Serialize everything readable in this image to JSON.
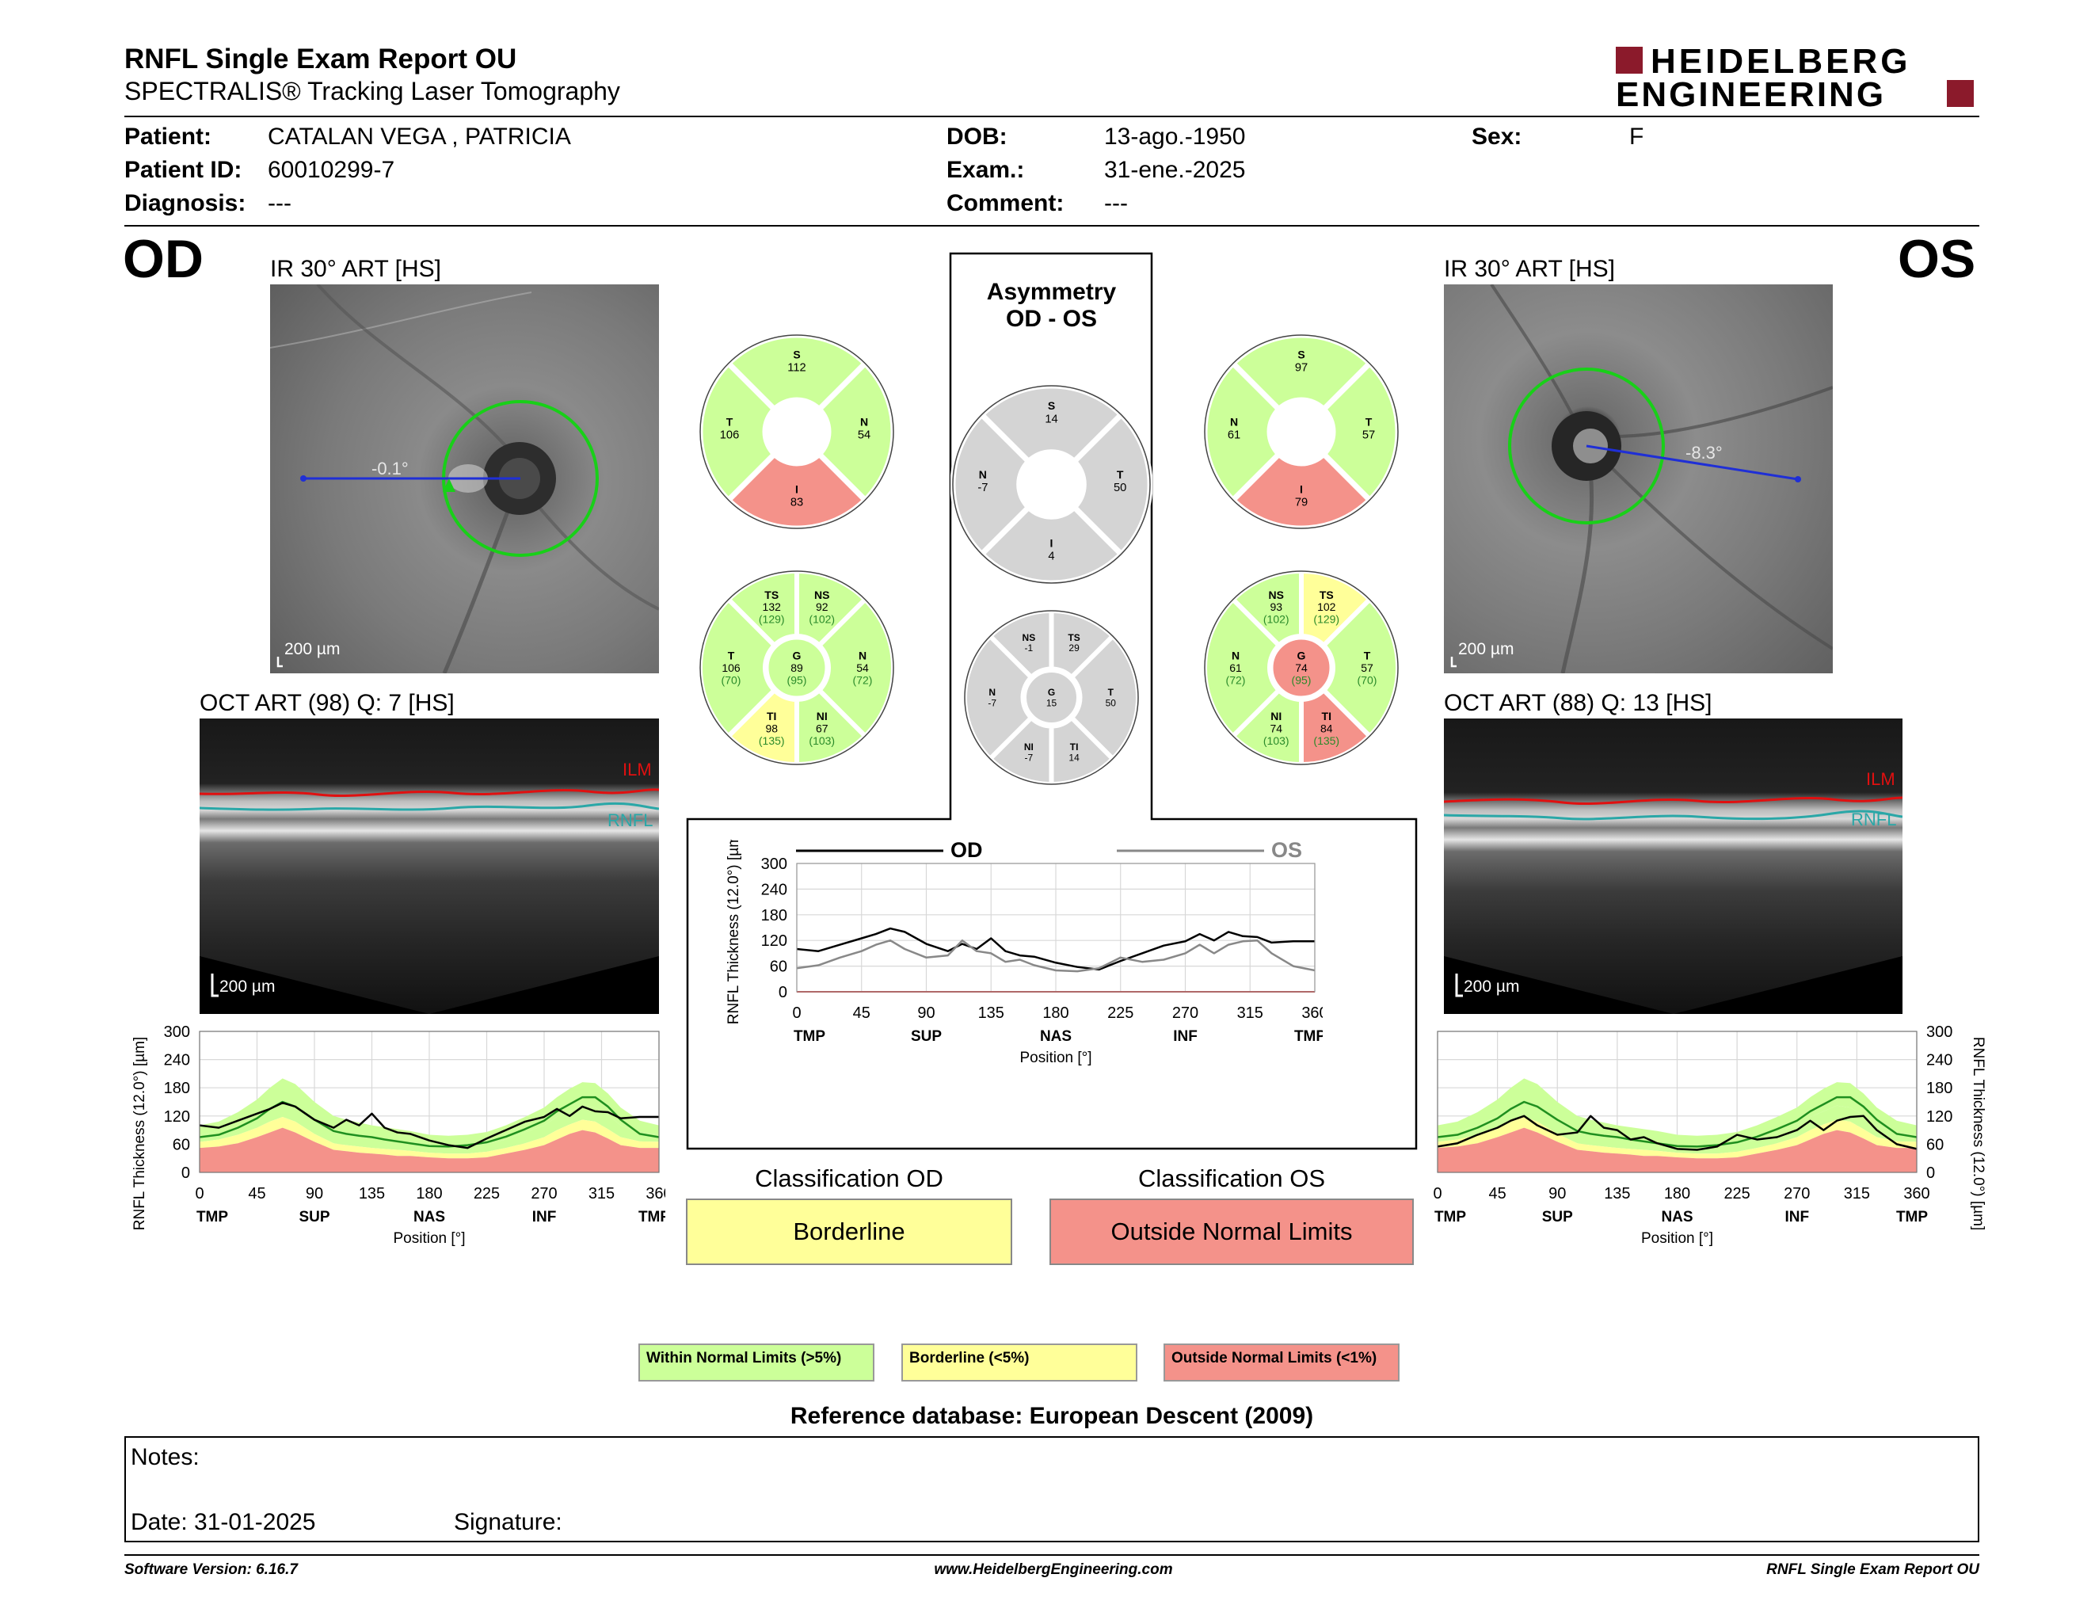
{
  "header": {
    "title": "RNFL Single Exam Report OU",
    "subtitle": "SPECTRALIS® Tracking Laser Tomography",
    "logo_line1": "HEIDELBERG",
    "logo_line2": "ENGINEERING"
  },
  "patient": {
    "patient_label": "Patient:",
    "patient_value": "CATALAN VEGA , PATRICIA",
    "id_label": "Patient ID:",
    "id_value": "60010299-7",
    "diagnosis_label": "Diagnosis:",
    "diagnosis_value": "---",
    "dob_label": "DOB:",
    "dob_value": "13-ago.-1950",
    "exam_label": "Exam.:",
    "exam_value": "31-ene.-2025",
    "comment_label": "Comment:",
    "comment_value": "---",
    "sex_label": "Sex:",
    "sex_value": "F"
  },
  "od": {
    "eye": "OD",
    "ir_label": "IR 30° ART [HS]",
    "ir_angle": "-0.1°",
    "ir_scale": "200 µm",
    "oct_label": "OCT ART (98) Q: 7 [HS]",
    "oct_scale": "200 µm",
    "ilm": "ILM",
    "rnfl": "RNFL",
    "classification_title": "Classification OD",
    "classification": "Borderline"
  },
  "os": {
    "eye": "OS",
    "ir_label": "IR 30° ART [HS]",
    "ir_angle": "-8.3°",
    "ir_scale": "200 µm",
    "oct_label": "OCT ART (88) Q: 13 [HS]",
    "oct_scale": "200 µm",
    "ilm": "ILM",
    "rnfl": "RNFL",
    "classification_title": "Classification OS",
    "classification": "Outside Normal Limits"
  },
  "asymmetry": {
    "title_line1": "Asymmetry",
    "title_line2": "OD - OS"
  },
  "colors": {
    "within": "#ccff99",
    "borderline": "#ffff99",
    "outside": "#f4928a",
    "neutral": "#d4d4d4",
    "od_line": "#000000",
    "os_line": "#888888"
  },
  "sector_charts": {
    "od_quadrants": [
      {
        "label": "S",
        "value": "112",
        "status": "within"
      },
      {
        "label": "N",
        "value": "54",
        "status": "within"
      },
      {
        "label": "I",
        "value": "83",
        "status": "outside"
      },
      {
        "label": "T",
        "value": "106",
        "status": "within"
      }
    ],
    "os_quadrants": [
      {
        "label": "S",
        "value": "97",
        "status": "within"
      },
      {
        "label": "T",
        "value": "57",
        "status": "within"
      },
      {
        "label": "I",
        "value": "79",
        "status": "outside"
      },
      {
        "label": "N",
        "value": "61",
        "status": "within"
      }
    ],
    "asym_quadrants": [
      {
        "label": "S",
        "value": "14"
      },
      {
        "label": "T",
        "value": "50"
      },
      {
        "label": "I",
        "value": "4"
      },
      {
        "label": "N",
        "value": "-7"
      }
    ],
    "od_sectors": [
      {
        "label": "TS",
        "value": "132",
        "ref": "(129)",
        "status": "within"
      },
      {
        "label": "NS",
        "value": "92",
        "ref": "(102)",
        "status": "within"
      },
      {
        "label": "N",
        "value": "54",
        "ref": "(72)",
        "status": "within"
      },
      {
        "label": "NI",
        "value": "67",
        "ref": "(103)",
        "status": "within"
      },
      {
        "label": "TI",
        "value": "98",
        "ref": "(135)",
        "status": "borderline"
      },
      {
        "label": "T",
        "value": "106",
        "ref": "(70)",
        "status": "within"
      },
      {
        "label": "G",
        "value": "89",
        "ref": "(95)",
        "status": "within"
      }
    ],
    "os_sectors": [
      {
        "label": "NS",
        "value": "93",
        "ref": "(102)",
        "status": "within"
      },
      {
        "label": "TS",
        "value": "102",
        "ref": "(129)",
        "status": "borderline"
      },
      {
        "label": "T",
        "value": "57",
        "ref": "(70)",
        "status": "within"
      },
      {
        "label": "TI",
        "value": "84",
        "ref": "(135)",
        "status": "outside"
      },
      {
        "label": "NI",
        "value": "74",
        "ref": "(103)",
        "status": "within"
      },
      {
        "label": "N",
        "value": "61",
        "ref": "(72)",
        "status": "within"
      },
      {
        "label": "G",
        "value": "74",
        "ref": "(95)",
        "status": "outside"
      }
    ],
    "asym_sectors": [
      {
        "label": "NS",
        "value": "-1"
      },
      {
        "label": "TS",
        "value": "29"
      },
      {
        "label": "T",
        "value": "50"
      },
      {
        "label": "TI",
        "value": "14"
      },
      {
        "label": "NI",
        "value": "-7"
      },
      {
        "label": "N",
        "value": "-7"
      },
      {
        "label": "G",
        "value": "15"
      }
    ]
  },
  "chart_data": [
    {
      "type": "area",
      "id": "od_profile",
      "ylabel": "RNFL Thickness (12.0°) [µm]",
      "xlabel": "Position [°]",
      "ylim": [
        0,
        300
      ],
      "xlim": [
        0,
        360
      ],
      "y_ticks": [
        0,
        60,
        120,
        180,
        240,
        300
      ],
      "x_ticks": [
        0,
        45,
        90,
        135,
        180,
        225,
        270,
        315,
        360
      ],
      "x_region_labels": [
        "TMP",
        "SUP",
        "NAS",
        "INF",
        "TMP"
      ],
      "x": [
        0,
        15,
        30,
        45,
        55,
        65,
        75,
        90,
        105,
        115,
        125,
        135,
        145,
        155,
        165,
        180,
        195,
        210,
        225,
        240,
        255,
        270,
        280,
        290,
        300,
        310,
        320,
        330,
        345,
        360
      ],
      "series": [
        {
          "name": "OD",
          "values": [
            100,
            95,
            110,
            125,
            135,
            148,
            140,
            112,
            95,
            112,
            100,
            125,
            95,
            85,
            82,
            68,
            58,
            52,
            72,
            90,
            108,
            118,
            135,
            120,
            140,
            130,
            128,
            115,
            118,
            118
          ]
        }
      ],
      "bands": {
        "outside_upper": [
          52,
          55,
          62,
          75,
          85,
          95,
          85,
          65,
          48,
          45,
          42,
          40,
          38,
          35,
          35,
          32,
          30,
          30,
          32,
          40,
          48,
          58,
          70,
          82,
          90,
          85,
          72,
          58,
          52,
          52
        ],
        "borderline_upper": [
          65,
          70,
          80,
          95,
          108,
          118,
          108,
          82,
          62,
          58,
          55,
          52,
          50,
          48,
          46,
          42,
          40,
          40,
          44,
          52,
          62,
          75,
          90,
          102,
          112,
          108,
          92,
          75,
          66,
          65
        ],
        "within_upper": [
          80,
          88,
          100,
          120,
          138,
          152,
          142,
          110,
          85,
          80,
          76,
          72,
          68,
          66,
          64,
          58,
          56,
          56,
          60,
          70,
          85,
          100,
          118,
          130,
          142,
          138,
          122,
          100,
          85,
          80
        ],
        "normal_upper": [
          100,
          108,
          128,
          155,
          180,
          200,
          188,
          150,
          120,
          112,
          106,
          100,
          96,
          92,
          88,
          80,
          78,
          80,
          86,
          100,
          118,
          138,
          160,
          178,
          192,
          190,
          168,
          138,
          110,
          100
        ],
        "mean": [
          75,
          80,
          95,
          115,
          135,
          150,
          140,
          112,
          88,
          82,
          78,
          75,
          70,
          66,
          62,
          56,
          55,
          58,
          64,
          76,
          92,
          110,
          130,
          145,
          160,
          160,
          140,
          112,
          82,
          75
        ]
      }
    },
    {
      "type": "area",
      "id": "os_profile",
      "ylabel": "RNFL Thickness (12.0°) [µm]",
      "xlabel": "Position [°]",
      "ylim": [
        0,
        300
      ],
      "xlim": [
        0,
        360
      ],
      "y_ticks": [
        0,
        60,
        120,
        180,
        240,
        300
      ],
      "x_ticks": [
        0,
        45,
        90,
        135,
        180,
        225,
        270,
        315,
        360
      ],
      "x_region_labels": [
        "TMP",
        "SUP",
        "NAS",
        "INF",
        "TMP"
      ],
      "x": [
        0,
        15,
        30,
        45,
        55,
        65,
        75,
        90,
        105,
        115,
        125,
        135,
        145,
        155,
        165,
        180,
        195,
        210,
        225,
        240,
        255,
        270,
        280,
        290,
        300,
        310,
        320,
        330,
        345,
        360
      ],
      "series": [
        {
          "name": "OS",
          "values": [
            55,
            62,
            80,
            95,
            110,
            120,
            100,
            80,
            85,
            120,
            95,
            90,
            70,
            75,
            62,
            50,
            48,
            55,
            80,
            70,
            75,
            90,
            110,
            90,
            110,
            118,
            120,
            90,
            60,
            50
          ]
        }
      ],
      "bands": {
        "outside_upper": [
          52,
          55,
          62,
          75,
          85,
          95,
          85,
          65,
          48,
          45,
          42,
          40,
          38,
          35,
          35,
          32,
          30,
          30,
          32,
          40,
          48,
          58,
          70,
          82,
          90,
          85,
          72,
          58,
          52,
          52
        ],
        "borderline_upper": [
          65,
          70,
          80,
          95,
          108,
          118,
          108,
          82,
          62,
          58,
          55,
          52,
          50,
          48,
          46,
          42,
          40,
          40,
          44,
          52,
          62,
          75,
          90,
          102,
          112,
          108,
          92,
          75,
          66,
          65
        ],
        "within_upper": [
          80,
          88,
          100,
          120,
          138,
          152,
          142,
          110,
          85,
          80,
          76,
          72,
          68,
          66,
          64,
          58,
          56,
          56,
          60,
          70,
          85,
          100,
          118,
          130,
          142,
          138,
          122,
          100,
          85,
          80
        ],
        "normal_upper": [
          100,
          108,
          128,
          155,
          180,
          200,
          188,
          150,
          120,
          112,
          106,
          100,
          96,
          92,
          88,
          80,
          78,
          80,
          86,
          100,
          118,
          138,
          160,
          178,
          192,
          190,
          168,
          138,
          110,
          100
        ],
        "mean": [
          75,
          80,
          95,
          115,
          135,
          150,
          140,
          112,
          88,
          82,
          78,
          75,
          70,
          66,
          62,
          56,
          55,
          58,
          64,
          76,
          92,
          110,
          130,
          145,
          160,
          160,
          140,
          112,
          82,
          75
        ]
      }
    },
    {
      "type": "line",
      "id": "od_os_compare",
      "ylabel": "RNFL Thickness (12.0°) [µm]",
      "xlabel": "Position [°]",
      "ylim": [
        0,
        300
      ],
      "xlim": [
        0,
        360
      ],
      "y_ticks": [
        0,
        60,
        120,
        180,
        240,
        300
      ],
      "x_ticks": [
        0,
        45,
        90,
        135,
        180,
        225,
        270,
        315,
        360
      ],
      "x_region_labels": [
        "TMP",
        "SUP",
        "NAS",
        "INF",
        "TMP"
      ],
      "x": [
        0,
        15,
        30,
        45,
        55,
        65,
        75,
        90,
        105,
        115,
        125,
        135,
        145,
        155,
        165,
        180,
        195,
        210,
        225,
        240,
        255,
        270,
        280,
        290,
        300,
        310,
        320,
        330,
        345,
        360
      ],
      "series": [
        {
          "name": "OD",
          "values": [
            100,
            95,
            110,
            125,
            135,
            148,
            140,
            112,
            95,
            112,
            100,
            125,
            95,
            85,
            82,
            68,
            58,
            52,
            72,
            90,
            108,
            118,
            135,
            120,
            140,
            130,
            128,
            115,
            118,
            118
          ]
        },
        {
          "name": "OS",
          "values": [
            55,
            62,
            80,
            95,
            110,
            120,
            100,
            80,
            85,
            120,
            95,
            90,
            70,
            75,
            62,
            50,
            48,
            55,
            80,
            70,
            75,
            90,
            110,
            90,
            110,
            118,
            120,
            90,
            60,
            50
          ]
        }
      ]
    }
  ],
  "legend": {
    "within": "Within Normal Limits (>5%)",
    "borderline": "Borderline (<5%)",
    "outside": "Outside Normal Limits (<1%)"
  },
  "reference": "Reference database: European Descent (2009)",
  "notes": {
    "notes_label": "Notes:",
    "date_label": "Date: 31-01-2025",
    "signature_label": "Signature:"
  },
  "footer": {
    "left": "Software Version: 6.16.7",
    "center": "www.HeidelbergEngineering.com",
    "right": "RNFL Single Exam Report OU"
  }
}
